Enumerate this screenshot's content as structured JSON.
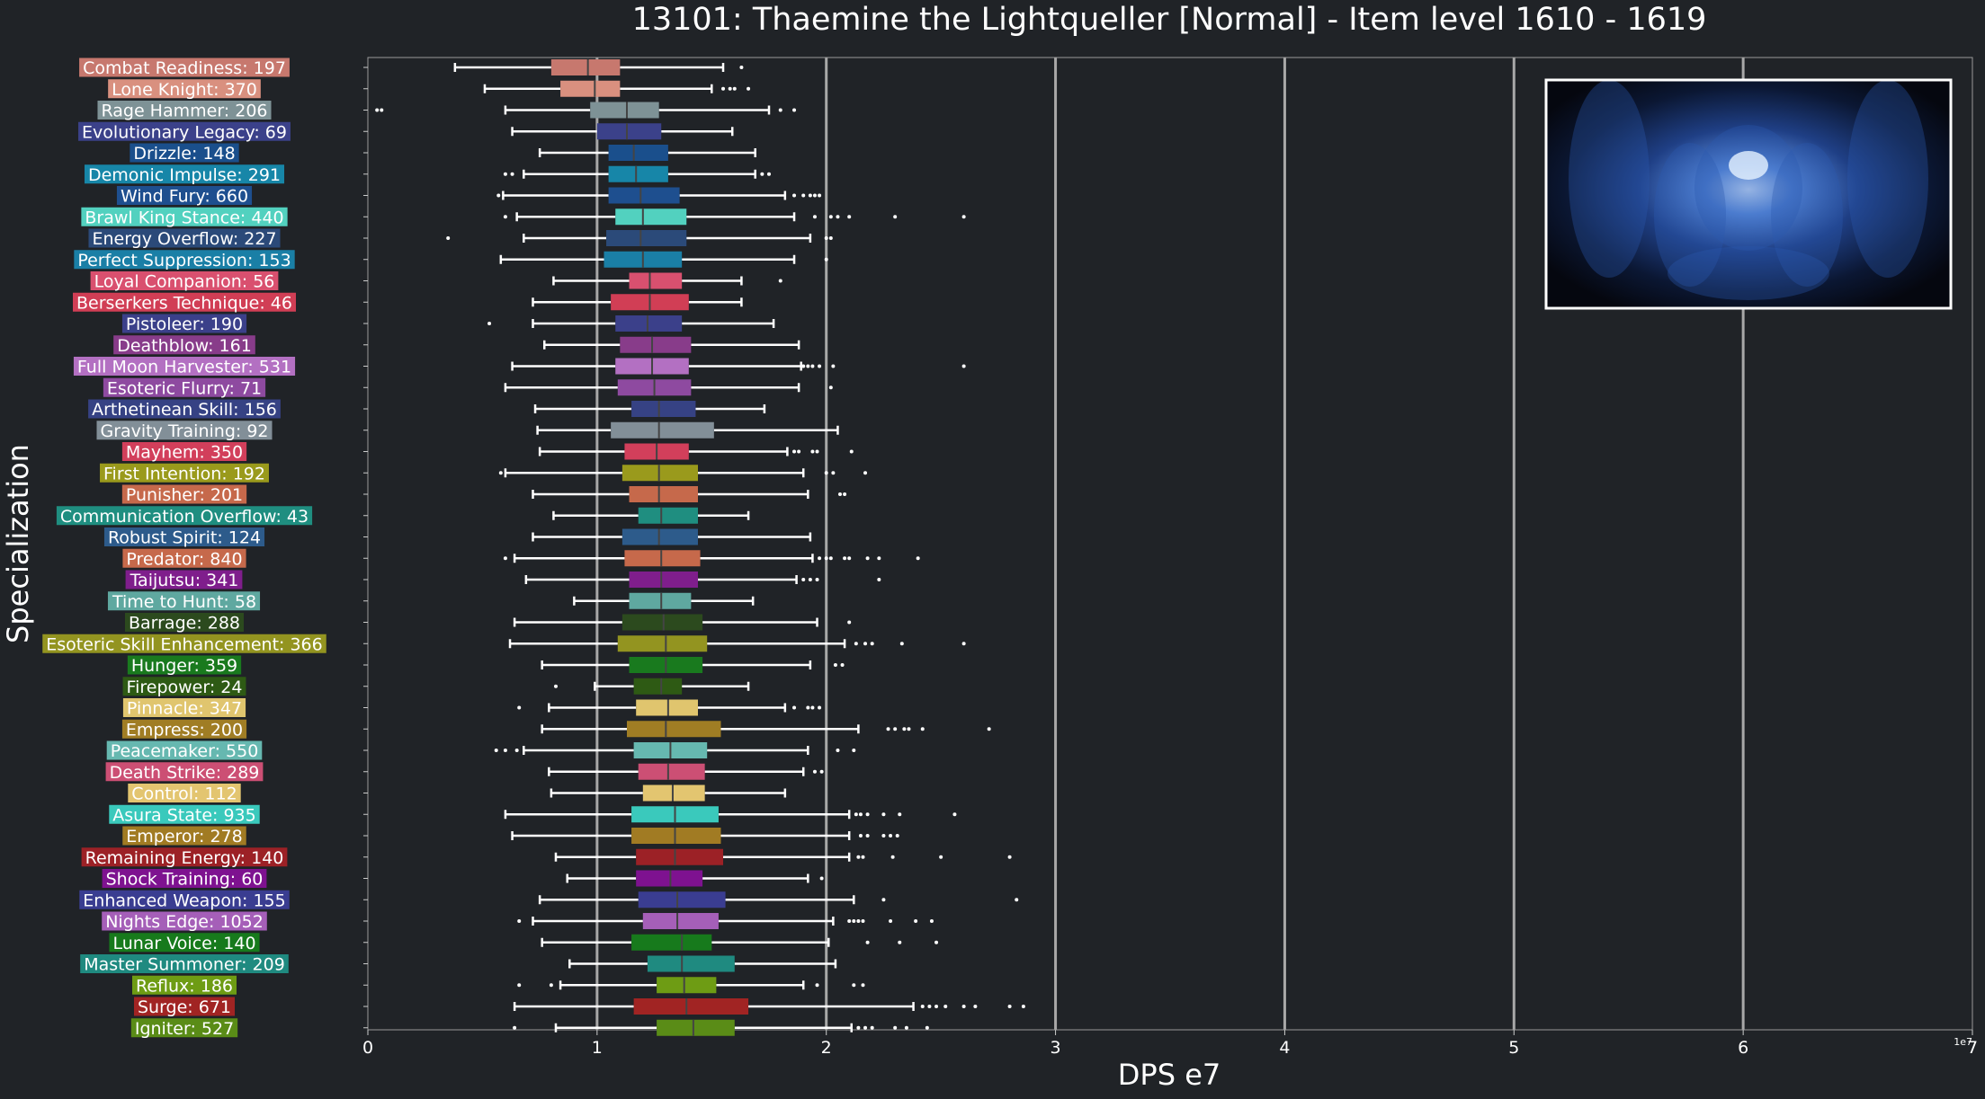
{
  "chart_data": {
    "type": "boxplot",
    "orientation": "horizontal",
    "title": "13101: Thaemine the Lightqueller [Normal] - Item level 1610 - 1619",
    "xlabel": "DPS e7",
    "ylabel": "Specialization",
    "x_offset_label": "1e7",
    "xlim": [
      0,
      7
    ],
    "xticks": [
      "0",
      "1",
      "2",
      "3",
      "4",
      "5",
      "6",
      "7"
    ],
    "grid": "vertical",
    "inset_image": "boss-artwork",
    "colors": {
      "background": "#202327",
      "grid": "#a8a8a8",
      "whisker": "#ffffff",
      "median": "#444444"
    },
    "specs": [
      {
        "label": "Combat Readiness: 197",
        "color": "#c7786e",
        "q1": 0.8,
        "median": 0.96,
        "q3": 1.1,
        "lo": 0.38,
        "hi": 1.55,
        "out": [
          1.63
        ]
      },
      {
        "label": "Lone Knight: 370",
        "color": "#d9907f",
        "q1": 0.84,
        "median": 0.99,
        "q3": 1.1,
        "lo": 0.51,
        "hi": 1.5,
        "out": [
          1.55,
          1.58,
          1.6,
          1.66
        ]
      },
      {
        "label": "Rage Hammer: 206",
        "color": "#7e9296",
        "q1": 0.97,
        "median": 1.13,
        "q3": 1.27,
        "lo": 0.6,
        "hi": 1.75,
        "out": [
          0.04,
          0.06,
          1.8,
          1.86
        ]
      },
      {
        "label": "Evolutionary Legacy: 69",
        "color": "#3b418a",
        "q1": 1.0,
        "median": 1.13,
        "q3": 1.28,
        "lo": 0.63,
        "hi": 1.59,
        "out": []
      },
      {
        "label": "Drizzle: 148",
        "color": "#1a4f8c",
        "q1": 1.05,
        "median": 1.16,
        "q3": 1.31,
        "lo": 0.75,
        "hi": 1.69,
        "out": []
      },
      {
        "label": "Demonic Impulse: 291",
        "color": "#1786a8",
        "q1": 1.05,
        "median": 1.17,
        "q3": 1.31,
        "lo": 0.68,
        "hi": 1.69,
        "out": [
          0.6,
          0.63,
          1.72,
          1.75
        ]
      },
      {
        "label": "Wind Fury: 660",
        "color": "#1e4f8f",
        "q1": 1.05,
        "median": 1.19,
        "q3": 1.36,
        "lo": 0.59,
        "hi": 1.82,
        "out": [
          0.57,
          1.86,
          1.9,
          1.93,
          1.95,
          1.97
        ]
      },
      {
        "label": "Brawl King Stance: 440",
        "color": "#52d1bf",
        "q1": 1.08,
        "median": 1.2,
        "q3": 1.39,
        "lo": 0.65,
        "hi": 1.86,
        "out": [
          0.6,
          1.95,
          2.02,
          2.05,
          2.1,
          2.3,
          2.6
        ]
      },
      {
        "label": "Energy Overflow: 227",
        "color": "#2b4a79",
        "q1": 1.04,
        "median": 1.19,
        "q3": 1.39,
        "lo": 0.68,
        "hi": 1.93,
        "out": [
          0.35,
          2.0,
          2.02
        ]
      },
      {
        "label": "Perfect Suppression: 153",
        "color": "#1a7fa6",
        "q1": 1.03,
        "median": 1.2,
        "q3": 1.37,
        "lo": 0.58,
        "hi": 1.86,
        "out": [
          2.0
        ]
      },
      {
        "label": "Loyal Companion: 56",
        "color": "#d9506f",
        "q1": 1.14,
        "median": 1.23,
        "q3": 1.37,
        "lo": 0.81,
        "hi": 1.63,
        "out": [
          1.8
        ]
      },
      {
        "label": "Berserkers Technique: 46",
        "color": "#d13e55",
        "q1": 1.06,
        "median": 1.23,
        "q3": 1.4,
        "lo": 0.72,
        "hi": 1.63,
        "out": []
      },
      {
        "label": "Pistoleer: 190",
        "color": "#3b408a",
        "q1": 1.08,
        "median": 1.22,
        "q3": 1.37,
        "lo": 0.72,
        "hi": 1.77,
        "out": [
          0.53
        ]
      },
      {
        "label": "Deathblow: 161",
        "color": "#883c8a",
        "q1": 1.1,
        "median": 1.24,
        "q3": 1.41,
        "lo": 0.77,
        "hi": 1.88,
        "out": []
      },
      {
        "label": "Full Moon Harvester: 531",
        "color": "#b370c2",
        "q1": 1.08,
        "median": 1.24,
        "q3": 1.4,
        "lo": 0.63,
        "hi": 1.89,
        "out": [
          1.9,
          1.92,
          1.94,
          1.97,
          2.03,
          2.6
        ]
      },
      {
        "label": "Esoteric Flurry: 71",
        "color": "#8e4aa0",
        "q1": 1.09,
        "median": 1.25,
        "q3": 1.41,
        "lo": 0.6,
        "hi": 1.88,
        "out": [
          2.02
        ]
      },
      {
        "label": "Arthetinean Skill: 156",
        "color": "#364284",
        "q1": 1.15,
        "median": 1.27,
        "q3": 1.43,
        "lo": 0.73,
        "hi": 1.73,
        "out": []
      },
      {
        "label": "Gravity Training: 92",
        "color": "#828f98",
        "q1": 1.06,
        "median": 1.27,
        "q3": 1.51,
        "lo": 0.74,
        "hi": 2.05,
        "out": []
      },
      {
        "label": "Mayhem: 350",
        "color": "#d23f5b",
        "q1": 1.12,
        "median": 1.26,
        "q3": 1.4,
        "lo": 0.75,
        "hi": 1.83,
        "out": [
          1.86,
          1.88,
          1.94,
          1.96,
          2.11
        ]
      },
      {
        "label": "First Intention: 192",
        "color": "#9a9a1c",
        "q1": 1.11,
        "median": 1.27,
        "q3": 1.44,
        "lo": 0.6,
        "hi": 1.9,
        "out": [
          0.58,
          2.0,
          2.03,
          2.17
        ]
      },
      {
        "label": "Punisher: 201",
        "color": "#c6694b",
        "q1": 1.14,
        "median": 1.27,
        "q3": 1.44,
        "lo": 0.72,
        "hi": 1.92,
        "out": [
          2.06,
          2.08
        ]
      },
      {
        "label": "Communication Overflow: 43",
        "color": "#1f8e80",
        "q1": 1.18,
        "median": 1.28,
        "q3": 1.44,
        "lo": 0.81,
        "hi": 1.66,
        "out": []
      },
      {
        "label": "Robust Spirit: 124",
        "color": "#2d5b8b",
        "q1": 1.11,
        "median": 1.27,
        "q3": 1.44,
        "lo": 0.72,
        "hi": 1.93,
        "out": []
      },
      {
        "label": "Predator: 840",
        "color": "#c6694b",
        "q1": 1.12,
        "median": 1.28,
        "q3": 1.45,
        "lo": 0.64,
        "hi": 1.94,
        "out": [
          0.6,
          1.97,
          2.0,
          2.02,
          2.08,
          2.1,
          2.18,
          2.23,
          2.4
        ]
      },
      {
        "label": "Taijutsu: 341",
        "color": "#7f1e8c",
        "q1": 1.14,
        "median": 1.28,
        "q3": 1.44,
        "lo": 0.69,
        "hi": 1.87,
        "out": [
          1.9,
          1.93,
          1.96,
          2.23
        ]
      },
      {
        "label": "Time to Hunt: 58",
        "color": "#5fa8a0",
        "q1": 1.14,
        "median": 1.28,
        "q3": 1.41,
        "lo": 0.9,
        "hi": 1.68,
        "out": []
      },
      {
        "label": "Barrage: 288",
        "color": "#2c4a1e",
        "q1": 1.11,
        "median": 1.29,
        "q3": 1.46,
        "lo": 0.64,
        "hi": 1.96,
        "out": [
          2.1
        ]
      },
      {
        "label": "Esoteric Skill Enhancement: 366",
        "color": "#939420",
        "q1": 1.09,
        "median": 1.3,
        "q3": 1.48,
        "lo": 0.62,
        "hi": 2.08,
        "out": [
          2.13,
          2.17,
          2.2,
          2.33,
          2.6
        ]
      },
      {
        "label": "Hunger: 359",
        "color": "#197a1e",
        "q1": 1.14,
        "median": 1.3,
        "q3": 1.46,
        "lo": 0.76,
        "hi": 1.93,
        "out": [
          2.04,
          2.07
        ]
      },
      {
        "label": "Firepower: 24",
        "color": "#2e5a14",
        "q1": 1.16,
        "median": 1.28,
        "q3": 1.37,
        "lo": 0.99,
        "hi": 1.66,
        "out": [
          0.82
        ]
      },
      {
        "label": "Pinnacle: 347",
        "color": "#e0c56e",
        "q1": 1.17,
        "median": 1.31,
        "q3": 1.44,
        "lo": 0.79,
        "hi": 1.82,
        "out": [
          0.66,
          1.86,
          1.92,
          1.94,
          1.97
        ]
      },
      {
        "label": "Empress: 200",
        "color": "#a07d24",
        "q1": 1.13,
        "median": 1.3,
        "q3": 1.54,
        "lo": 0.76,
        "hi": 2.14,
        "out": [
          2.27,
          2.3,
          2.34,
          2.36,
          2.42,
          2.71
        ]
      },
      {
        "label": "Peacemaker: 550",
        "color": "#66b8b0",
        "q1": 1.16,
        "median": 1.32,
        "q3": 1.48,
        "lo": 0.68,
        "hi": 1.92,
        "out": [
          0.56,
          0.6,
          0.65,
          2.05,
          2.12
        ]
      },
      {
        "label": "Death Strike: 289",
        "color": "#cc4f74",
        "q1": 1.18,
        "median": 1.31,
        "q3": 1.47,
        "lo": 0.79,
        "hi": 1.9,
        "out": [
          1.95,
          1.98
        ]
      },
      {
        "label": "Control: 112",
        "color": "#e3c570",
        "q1": 1.2,
        "median": 1.33,
        "q3": 1.47,
        "lo": 0.8,
        "hi": 1.82,
        "out": []
      },
      {
        "label": "Asura State: 935",
        "color": "#3ac9bc",
        "q1": 1.15,
        "median": 1.34,
        "q3": 1.53,
        "lo": 0.6,
        "hi": 2.1,
        "out": [
          2.13,
          2.15,
          2.18,
          2.25,
          2.32,
          2.56
        ]
      },
      {
        "label": "Emperor: 278",
        "color": "#a17b23",
        "q1": 1.15,
        "median": 1.34,
        "q3": 1.54,
        "lo": 0.63,
        "hi": 2.1,
        "out": [
          2.15,
          2.18,
          2.25,
          2.28,
          2.31
        ]
      },
      {
        "label": "Remaining Energy: 140",
        "color": "#9c2126",
        "q1": 1.17,
        "median": 1.34,
        "q3": 1.55,
        "lo": 0.82,
        "hi": 2.1,
        "out": [
          2.14,
          2.16,
          2.29,
          2.5,
          2.8
        ]
      },
      {
        "label": "Shock Training: 60",
        "color": "#7e1290",
        "q1": 1.17,
        "median": 1.32,
        "q3": 1.46,
        "lo": 0.87,
        "hi": 1.92,
        "out": [
          1.98
        ]
      },
      {
        "label": "Enhanced Weapon: 155",
        "color": "#3a3d91",
        "q1": 1.18,
        "median": 1.35,
        "q3": 1.56,
        "lo": 0.75,
        "hi": 2.12,
        "out": [
          2.25,
          2.83
        ]
      },
      {
        "label": "Nights Edge: 1052",
        "color": "#a55fb8",
        "q1": 1.2,
        "median": 1.35,
        "q3": 1.53,
        "lo": 0.72,
        "hi": 2.03,
        "out": [
          0.66,
          2.1,
          2.12,
          2.14,
          2.16,
          2.28,
          2.39,
          2.46
        ]
      },
      {
        "label": "Lunar Voice: 140",
        "color": "#177a1c",
        "q1": 1.15,
        "median": 1.37,
        "q3": 1.5,
        "lo": 0.76,
        "hi": 2.01,
        "out": [
          2.18,
          2.32,
          2.48
        ]
      },
      {
        "label": "Master Summoner: 209",
        "color": "#1f8a80",
        "q1": 1.22,
        "median": 1.37,
        "q3": 1.6,
        "lo": 0.88,
        "hi": 2.04,
        "out": []
      },
      {
        "label": "Reflux: 186",
        "color": "#6e9c14",
        "q1": 1.26,
        "median": 1.38,
        "q3": 1.52,
        "lo": 0.84,
        "hi": 1.9,
        "out": [
          0.66,
          0.8,
          1.96,
          2.12,
          2.16
        ]
      },
      {
        "label": "Surge: 671",
        "color": "#a12423",
        "q1": 1.16,
        "median": 1.39,
        "q3": 1.66,
        "lo": 0.64,
        "hi": 2.38,
        "out": [
          2.42,
          2.45,
          2.48,
          2.52,
          2.6,
          2.65,
          2.8,
          2.86
        ]
      },
      {
        "label": "Igniter: 527",
        "color": "#5a8c17",
        "q1": 1.26,
        "median": 1.42,
        "q3": 1.6,
        "lo": 0.82,
        "hi": 2.11,
        "out": [
          0.64,
          2.14,
          2.17,
          2.2,
          2.3,
          2.35,
          2.44
        ]
      }
    ]
  }
}
